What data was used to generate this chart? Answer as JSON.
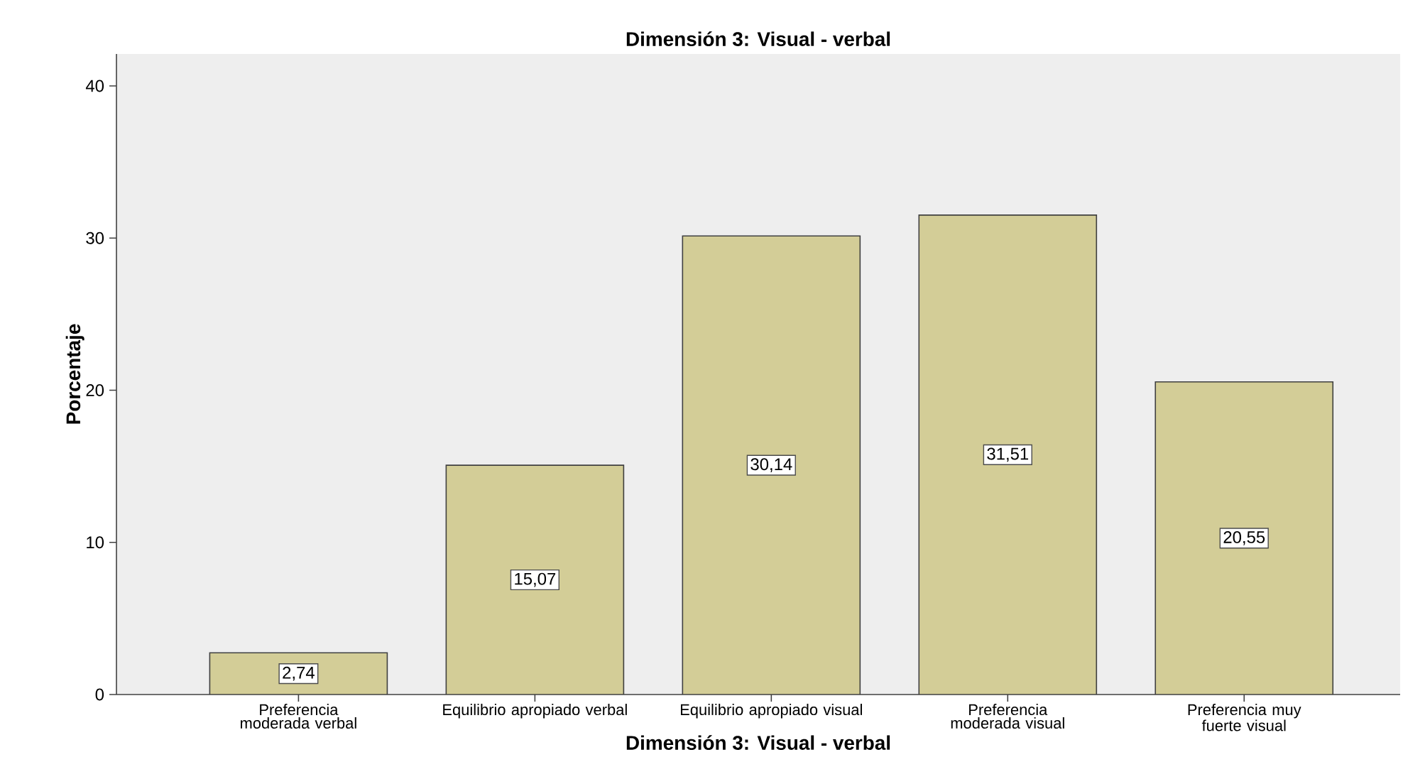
{
  "chart_data": {
    "type": "bar",
    "title": "Dimensión 3: Visual - verbal",
    "xlabel": "Dimensión 3: Visual - verbal",
    "ylabel": "Porcentaje",
    "categories": [
      "Preferencia moderada verbal",
      "Equilibrio apropiado verbal",
      "Equilibrio apropiado visual",
      "Preferencia moderada visual",
      "Preferencia muy fuerte visual"
    ],
    "values": [
      2.74,
      15.07,
      30.14,
      31.51,
      20.55
    ],
    "value_labels": [
      "2,74",
      "15,07",
      "30,14",
      "31,51",
      "20,55"
    ],
    "color": "#d3cd97",
    "ylim": [
      0,
      42.1
    ],
    "yticks": [
      0,
      10,
      20,
      30,
      40
    ],
    "grid": false
  }
}
